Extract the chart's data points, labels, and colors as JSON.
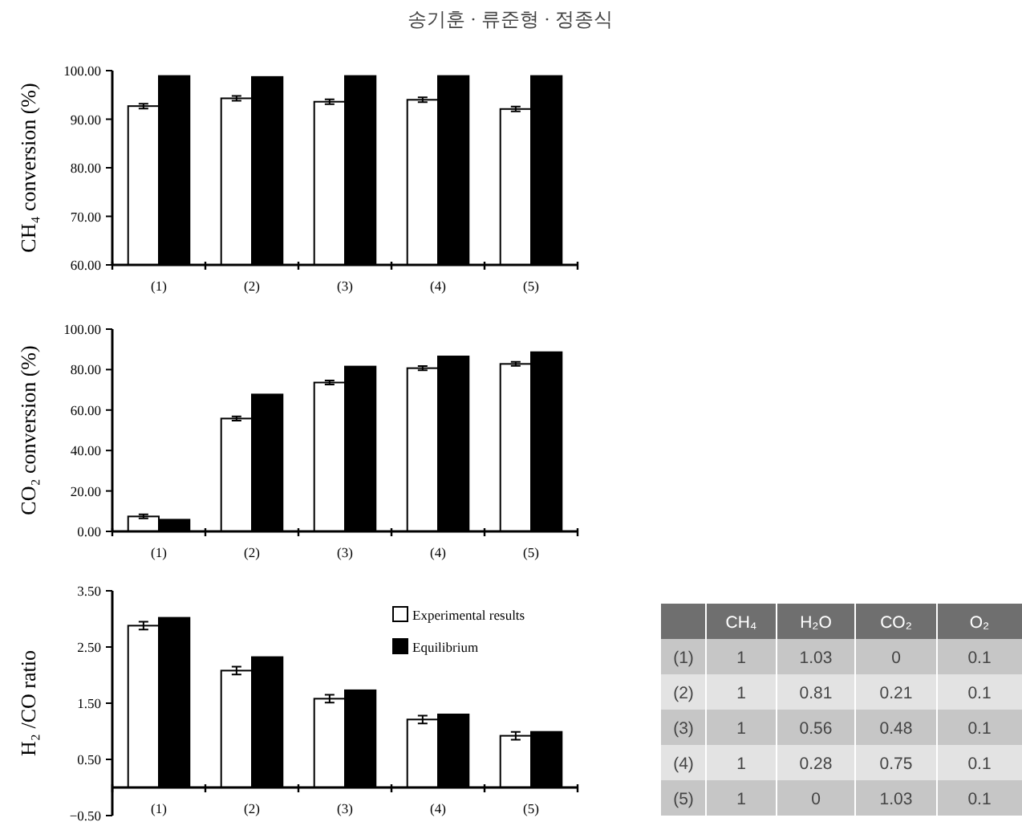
{
  "chart_data": [
    {
      "type": "bar",
      "title": "송기훈 · 류준형 · 정종식",
      "ylabel": "CH₄ conversion (%)",
      "categories": [
        "(1)",
        "(2)",
        "(3)",
        "(4)",
        "(5)"
      ],
      "series": [
        {
          "color": "#ffffff",
          "values": [
            92.7,
            94.3,
            93.6,
            94.0,
            92.1
          ],
          "errors": [
            0.5,
            0.5,
            0.5,
            0.5,
            0.5
          ]
        },
        {
          "color": "#000000",
          "values": [
            98.9,
            98.7,
            98.9,
            98.9,
            98.9
          ]
        }
      ],
      "ylim": [
        60,
        100
      ],
      "yticks": [
        {
          "value": 60,
          "label": "60.00"
        },
        {
          "value": 70,
          "label": "70.00"
        },
        {
          "value": 80,
          "label": "80.00"
        },
        {
          "value": 90,
          "label": "90.00"
        },
        {
          "value": 100,
          "label": "100.00"
        }
      ],
      "legend": false,
      "grid": false
    },
    {
      "type": "bar",
      "ylabel": "CO₂ conversion (%)",
      "categories": [
        "(1)",
        "(2)",
        "(3)",
        "(4)",
        "(5)"
      ],
      "series": [
        {
          "color": "#ffffff",
          "values": [
            7.4,
            55.8,
            73.6,
            80.7,
            82.8
          ],
          "errors": [
            1,
            1,
            1,
            1,
            1
          ]
        },
        {
          "color": "#000000",
          "values": [
            5.8,
            67.7,
            81.5,
            86.5,
            88.6
          ]
        }
      ],
      "ylim": [
        0,
        100
      ],
      "yticks": [
        {
          "value": 0,
          "label": "0.00"
        },
        {
          "value": 20,
          "label": "20.00"
        },
        {
          "value": 40,
          "label": "40.00"
        },
        {
          "value": 60,
          "label": "60.00"
        },
        {
          "value": 80,
          "label": "80.00"
        },
        {
          "value": 100,
          "label": "100.00"
        }
      ],
      "legend": false,
      "grid": false
    },
    {
      "type": "bar",
      "ylabel": "H₂ /CO ratio",
      "categories": [
        "(1)",
        "(2)",
        "(3)",
        "(4)",
        "(5)"
      ],
      "series": [
        {
          "name": "Experimental results",
          "color": "#ffffff",
          "values": [
            2.88,
            2.08,
            1.58,
            1.21,
            0.92
          ],
          "errors": [
            0.07,
            0.07,
            0.07,
            0.07,
            0.07
          ]
        },
        {
          "name": "Equilibrium",
          "color": "#000000",
          "values": [
            3.02,
            2.32,
            1.73,
            1.3,
            0.99
          ]
        }
      ],
      "ylim": [
        -0.5,
        3.5
      ],
      "yticks": [
        {
          "value": -0.5,
          "label": "−0.50"
        },
        {
          "value": 0.5,
          "label": "0.50"
        },
        {
          "value": 1.5,
          "label": "1.50"
        },
        {
          "value": 2.5,
          "label": "2.50"
        },
        {
          "value": 3.5,
          "label": "3.50"
        }
      ],
      "legend": "top right",
      "grid": false
    },
    {
      "type": "heatmap",
      "categories": [
        "CH₄",
        "H₂O",
        "CO₂",
        "O₂"
      ],
      "y_categories": [
        "(1)",
        "(2)",
        "(3)",
        "(4)",
        "(5)"
      ],
      "cells": [
        [
          1,
          1.03,
          0,
          0.1
        ],
        [
          1,
          0.81,
          0.21,
          0.1
        ],
        [
          1,
          0.56,
          0.48,
          0.1
        ],
        [
          1,
          0.28,
          0.75,
          0.1
        ],
        [
          1,
          0,
          1.03,
          0.1
        ]
      ],
      "data_labels": true,
      "colors": [
        "#c6c6c6",
        "#e3e3e3"
      ]
    }
  ]
}
